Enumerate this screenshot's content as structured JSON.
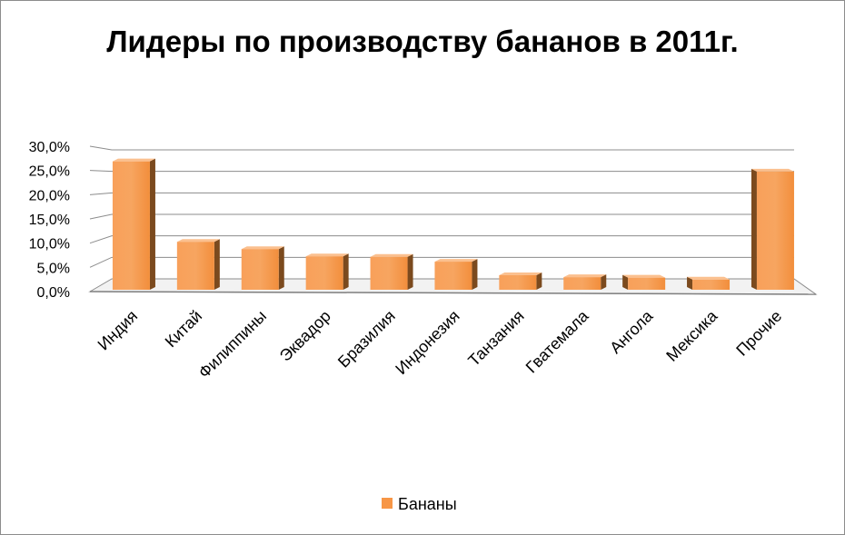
{
  "chart_data": {
    "type": "bar",
    "title": "Лидеры по производству бананов в 2011г.",
    "xlabel": "",
    "ylabel": "",
    "categories": [
      "Индия",
      "Китай",
      "Филиппины",
      "Эквадор",
      "Бразилия",
      "Индонезия",
      "Танзания",
      "Гватемала",
      "Ангола",
      "Мексика",
      "Прочие"
    ],
    "series": [
      {
        "name": "Бананы",
        "values": [
          26.5,
          9.9,
          8.4,
          6.9,
          6.8,
          5.8,
          3.0,
          2.6,
          2.5,
          2.1,
          24.4
        ]
      }
    ],
    "ylim": [
      0,
      30
    ],
    "yticks": [
      "0,0%",
      "5,0%",
      "10,0%",
      "15,0%",
      "20,0%",
      "25,0%",
      "30,0%"
    ],
    "grid": true,
    "legend_position": "bottom",
    "colors": {
      "bar_front": "#f79646",
      "bar_side": "#7b4a1e",
      "gridline": "#8c8c8c"
    }
  }
}
